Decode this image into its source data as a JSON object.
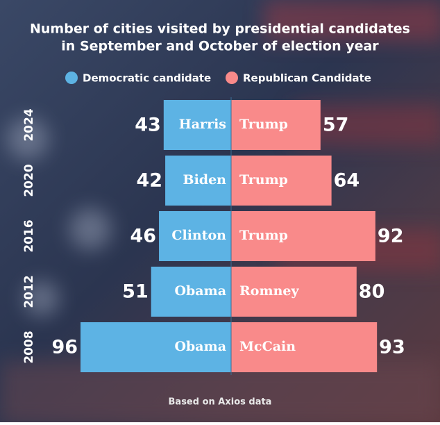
{
  "chart_data": {
    "type": "diverging-bar",
    "title": [
      "Number of cities visited by presidential candidates",
      "in September and October of election year"
    ],
    "categories": [
      "2024",
      "2020",
      "2016",
      "2012",
      "2008"
    ],
    "series": [
      {
        "name": "Democratic candidate",
        "color": "#5db3e4",
        "values": [
          43,
          42,
          46,
          51,
          96
        ],
        "bar_labels": [
          "Harris",
          "Biden",
          "Clinton",
          "Obama",
          "Obama"
        ]
      },
      {
        "name": "Republican Candidate",
        "color": "#f98a8a",
        "values": [
          57,
          64,
          92,
          80,
          93
        ],
        "bar_labels": [
          "Trump",
          "Trump",
          "Trump",
          "Romney",
          "McCain"
        ]
      }
    ],
    "xlim": [
      0,
      100
    ],
    "source": "Based on Axios data"
  }
}
